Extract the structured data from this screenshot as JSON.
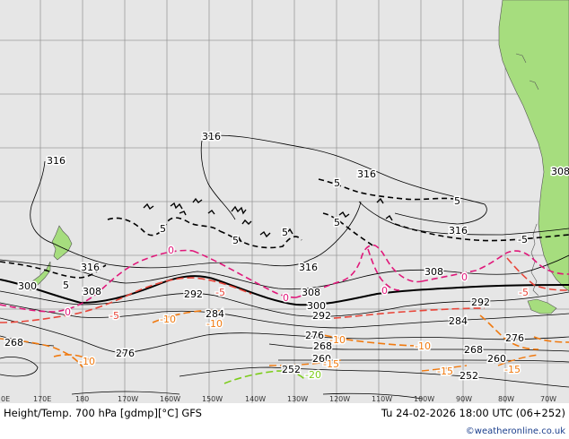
{
  "footer": {
    "left": "Height/Temp. 700 hPa [gdmp][°C] GFS",
    "right": "Tu 24-02-2026 18:00 UTC (06+252)",
    "credit": "©weatheronline.co.uk"
  },
  "lon_labels": [
    "0E",
    "170E",
    "180",
    "170W",
    "160W",
    "150W",
    "140W",
    "130W",
    "120W",
    "110W",
    "100W",
    "90W",
    "80W",
    "70W"
  ],
  "height_labels": {
    "h316a": "316",
    "h316b": "316",
    "h316c": "316",
    "h316d": "316",
    "h316e": "316",
    "h316f": "316",
    "h308a": "308",
    "h308b": "308",
    "h308c": "308",
    "h308d": "308",
    "h308e": "308",
    "h300a": "300",
    "h300b": "300",
    "h292a": "292",
    "h292b": "292",
    "h292c": "292",
    "h284a": "284",
    "h284b": "284",
    "h276a": "276",
    "h276b": "276",
    "h276c": "276",
    "h268a": "268",
    "h268b": "268",
    "h268c": "268",
    "h260a": "260",
    "h260b": "260",
    "h252a": "252",
    "h252b": "252"
  },
  "temp_labels": {
    "t5a": "5",
    "t5b": "5",
    "t5c": "5",
    "t5d": "5",
    "t5e": "5",
    "t5f": "5",
    "t5g": "5",
    "t5h": "-5",
    "t0a": "0",
    "t0b": "0",
    "t0c": "0",
    "t0d": "0",
    "t0e": "0",
    "tm5a": "-5",
    "tm5b": "-5",
    "tm5c": "-5",
    "tm10a": "-10",
    "tm10b": "-10",
    "tm10c": "-10",
    "tm10d": "-10",
    "tm10e": "-10",
    "tm15a": "-15",
    "tm15b": "-15",
    "tm15c": "-15",
    "tm20a": "-20"
  },
  "colors": {
    "ocean": "#e6e6e6",
    "land": "#a6dd7e",
    "grid": "#9a9a9a",
    "height": "#000000",
    "temp_warm": "#000000",
    "temp_zero": "#e0187a",
    "temp_cold": "#f07a10",
    "temp_colder": "#7ccc1a"
  }
}
